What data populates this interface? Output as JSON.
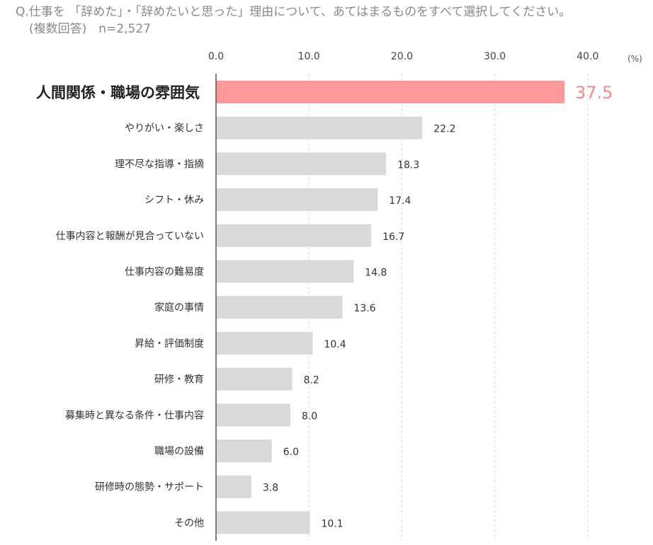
{
  "title": "Q.仕事を 「辞めた」・「辞めたいと思った」理由について、あてはまるものをすべて選択してください。",
  "subtitle": "(複数回答)　n=2,527",
  "chart_data": {
    "type": "bar",
    "orientation": "horizontal",
    "unit": "(%)",
    "xlim": [
      0,
      40
    ],
    "ticks": [
      "0.0",
      "10.0",
      "20.0",
      "30.0",
      "40.0"
    ],
    "tick_values": [
      0,
      10,
      20,
      30,
      40
    ],
    "grid": true,
    "categories": [
      "人間関係・職場の雰囲気",
      "やりがい・楽しさ",
      "理不尽な指導・指摘",
      "シフト・休み",
      "仕事内容と報酬が見合っていない",
      "仕事内容の難易度",
      "家庭の事情",
      "昇給・評価制度",
      "研修・教育",
      "募集時と異なる条件・仕事内容",
      "職場の設備",
      "研修時の態勢・サポート",
      "その他"
    ],
    "values": [
      37.5,
      22.2,
      18.3,
      17.4,
      16.7,
      14.8,
      13.6,
      10.4,
      8.2,
      8.0,
      6.0,
      3.8,
      10.1
    ],
    "value_labels": [
      "37.5",
      "22.2",
      "18.3",
      "17.4",
      "16.7",
      "14.8",
      "13.6",
      "10.4",
      "8.2",
      "8.0",
      "6.0",
      "3.8",
      "10.1"
    ],
    "highlight_index": 0,
    "colors": {
      "highlight": "#ff9999",
      "bar": "#d9d9d9",
      "highlight_label": "#f48a8a",
      "axis": "#555555",
      "grid": "#dddddd"
    }
  }
}
